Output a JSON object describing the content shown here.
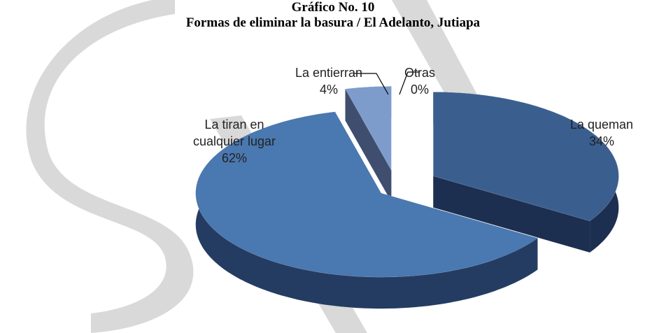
{
  "chart_data": {
    "type": "pie3d",
    "title": "Gráfico No. 10",
    "subtitle": "Formas de eliminar la basura / El Adelanto, Jutiapa",
    "categories": [
      "La queman",
      "La tiran en cualquier lugar",
      "La entierran",
      "Otras"
    ],
    "values": [
      34,
      62,
      4,
      0
    ],
    "value_labels": [
      "34%",
      "62%",
      "4%",
      "0%"
    ],
    "colors": [
      "#3a5f8f",
      "#4a78b0",
      "#7e9ccb",
      "#b8cbe8"
    ]
  }
}
